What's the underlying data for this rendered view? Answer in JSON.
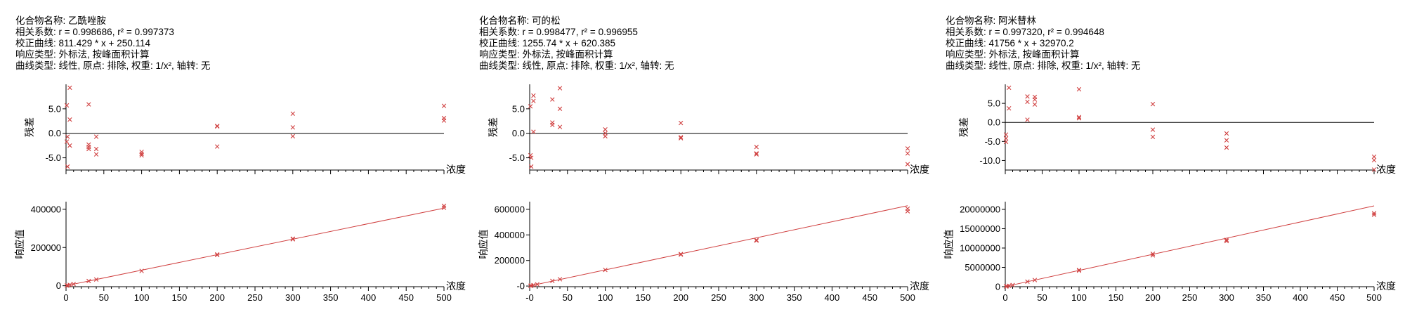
{
  "colors": {
    "marker": "#d04040",
    "fit_line": "#d04040",
    "axis": "#000000",
    "zero_line": "#000000"
  },
  "charts": [
    {
      "compound_label": "化合物名称:",
      "compound_name": "乙酰唑胺",
      "correlation_line": "相关系数:  r = 0.998686, r² = 0.997373",
      "calibration_line": "校正曲线:  811.429 * x + 250.114",
      "response_line": "响应类型:  外标法, 按峰面积计算",
      "curve_line": "曲线类型:  线性, 原点: 排除, 权重: 1/x², 轴转: 无"
    },
    {
      "compound_label": "化合物名称:",
      "compound_name": "可的松",
      "correlation_line": "相关系数:  r = 0.998477, r² = 0.996955",
      "calibration_line": "校正曲线:  1255.74 * x + 620.385",
      "response_line": "响应类型:  外标法, 按峰面积计算",
      "curve_line": "曲线类型:  线性, 原点: 排除, 权重: 1/x², 轴转: 无"
    },
    {
      "compound_label": "化合物名称:",
      "compound_name": "阿米替林",
      "correlation_line": "相关系数:  r = 0.997320, r² = 0.994648",
      "calibration_line": "校正曲线:  41756 * x + 32970.2",
      "response_line": "响应类型:  外标法, 按峰面积计算",
      "curve_line": "曲线类型:  线性, 原点: 排除, 权重: 1/x², 轴转: 无"
    }
  ],
  "chart_data": [
    {
      "type": "scatter",
      "title": "",
      "xlabel": "浓度",
      "ylabel": "残差",
      "xlim": [
        0,
        500
      ],
      "ylim": [
        -7.5,
        10
      ],
      "yticks": [
        5.0,
        0.0,
        -5.0
      ],
      "ytick_labels": [
        "5.0",
        "0.0",
        "-5.0"
      ],
      "zero_line": 0,
      "x": [
        1,
        1,
        2,
        2,
        5,
        5,
        5,
        30,
        30,
        30,
        30,
        40,
        40,
        40,
        100,
        100,
        100,
        200,
        200,
        200,
        300,
        300,
        300,
        500,
        500,
        500
      ],
      "y": [
        5.7,
        -1.7,
        -0.7,
        -6.8,
        9.3,
        2.8,
        -2.5,
        5.9,
        -2.3,
        -2.8,
        -3.2,
        -0.7,
        -3.2,
        -4.3,
        -3.8,
        -4.2,
        -4.5,
        1.5,
        1.4,
        -2.7,
        4.0,
        1.2,
        -0.6,
        5.6,
        3.1,
        2.6
      ]
    },
    {
      "type": "scatter",
      "title": "",
      "xlabel": "浓度",
      "ylabel": "响应值",
      "xlim": [
        0,
        500
      ],
      "ylim": [
        -5000,
        440000
      ],
      "xticks": [
        0,
        50,
        100,
        150,
        200,
        250,
        300,
        350,
        400,
        450,
        500
      ],
      "xtick_labels": [
        "0",
        "50",
        "100",
        "150",
        "200",
        "250",
        "300",
        "350",
        "400",
        "450",
        "500"
      ],
      "yticks": [
        0,
        200000,
        400000
      ],
      "ytick_labels": [
        "0",
        "200000",
        "400000"
      ],
      "fit": {
        "slope": 811.429,
        "intercept": 250.114
      },
      "x": [
        1,
        2,
        5,
        10,
        30,
        40,
        100,
        200,
        200,
        300,
        300,
        500,
        500
      ],
      "y": [
        1000,
        1800,
        4300,
        8400,
        24500,
        32600,
        77500,
        164000,
        161000,
        246000,
        243000,
        418000,
        408000
      ]
    },
    {
      "type": "scatter",
      "title": "",
      "xlabel": "浓度",
      "ylabel": "残差",
      "xlim": [
        0,
        500
      ],
      "ylim": [
        -7.5,
        10
      ],
      "yticks": [
        5.0,
        0.0,
        -5.0
      ],
      "ytick_labels": [
        "5.0",
        "0.0",
        "-5.0"
      ],
      "zero_line": 0,
      "x": [
        1,
        1,
        2,
        2,
        5,
        5,
        5,
        30,
        30,
        30,
        40,
        40,
        40,
        100,
        100,
        100,
        200,
        200,
        200,
        300,
        300,
        300,
        500,
        500,
        500
      ],
      "y": [
        5.5,
        -4.5,
        -5.0,
        -6.8,
        7.7,
        6.6,
        0.3,
        6.9,
        2.2,
        1.7,
        9.2,
        5.0,
        1.3,
        0.8,
        0.0,
        -0.6,
        2.1,
        -0.8,
        -1.0,
        -2.8,
        -4.1,
        -4.3,
        -3.1,
        -4.1,
        -6.3
      ]
    },
    {
      "type": "scatter",
      "title": "",
      "xlabel": "浓度",
      "ylabel": "响应值",
      "xlim": [
        0,
        500
      ],
      "ylim": [
        -5000,
        660000
      ],
      "xticks": [
        0,
        50,
        100,
        150,
        200,
        250,
        300,
        350,
        400,
        450,
        500
      ],
      "xtick_labels": [
        "-0",
        "50",
        "100",
        "150",
        "200",
        "250",
        "300",
        "350",
        "400",
        "450",
        "500"
      ],
      "yticks": [
        0,
        200000,
        400000,
        600000
      ],
      "ytick_labels": [
        "-0",
        "200000",
        "400000",
        "600000"
      ],
      "fit": {
        "slope": 1255.74,
        "intercept": 620.385
      },
      "x": [
        1,
        2,
        5,
        10,
        30,
        40,
        100,
        200,
        200,
        300,
        300,
        500,
        500
      ],
      "y": [
        1900,
        3100,
        7100,
        13400,
        40000,
        53000,
        126000,
        250000,
        246000,
        360000,
        355000,
        605000,
        585000
      ]
    },
    {
      "type": "scatter",
      "title": "",
      "xlabel": "浓度",
      "ylabel": "残差",
      "xlim": [
        0,
        500
      ],
      "ylim": [
        -12.5,
        10
      ],
      "yticks": [
        5.0,
        0.0,
        -5.0,
        -10.0
      ],
      "ytick_labels": [
        "5.0",
        "0.0",
        "-5.0",
        "-10.0"
      ],
      "zero_line": 0,
      "x": [
        1,
        1,
        1,
        5,
        5,
        30,
        30,
        30,
        40,
        40,
        40,
        100,
        100,
        100,
        200,
        200,
        200,
        300,
        300,
        300,
        500,
        500,
        500
      ],
      "y": [
        -3.2,
        -4.2,
        -5.1,
        9.1,
        3.7,
        6.8,
        5.4,
        0.7,
        6.7,
        6.0,
        4.7,
        8.7,
        1.4,
        1.1,
        4.8,
        -1.9,
        -3.8,
        -2.9,
        -4.7,
        -6.6,
        -9.0,
        -9.9,
        -12.4
      ]
    },
    {
      "type": "scatter",
      "title": "",
      "xlabel": "浓度",
      "ylabel": "响应值",
      "xlim": [
        0,
        500
      ],
      "ylim": [
        0,
        22000000
      ],
      "xticks": [
        0,
        50,
        100,
        150,
        200,
        250,
        300,
        350,
        400,
        450,
        500
      ],
      "xtick_labels": [
        "0",
        "50",
        "100",
        "150",
        "200",
        "250",
        "300",
        "350",
        "400",
        "450",
        "500"
      ],
      "yticks": [
        0,
        5000000,
        10000000,
        15000000,
        20000000
      ],
      "ytick_labels": [
        "0",
        "5000000",
        "10000000",
        "15000000",
        "20000000"
      ],
      "fit": {
        "slope": 41756,
        "intercept": 32970.2
      },
      "x": [
        1,
        2,
        5,
        10,
        30,
        40,
        100,
        100,
        200,
        200,
        300,
        300,
        500,
        500
      ],
      "y": [
        60000,
        110000,
        240000,
        430000,
        1300000,
        1720000,
        4300000,
        4150000,
        8500000,
        8100000,
        12100000,
        11800000,
        19000000,
        18600000
      ]
    }
  ]
}
